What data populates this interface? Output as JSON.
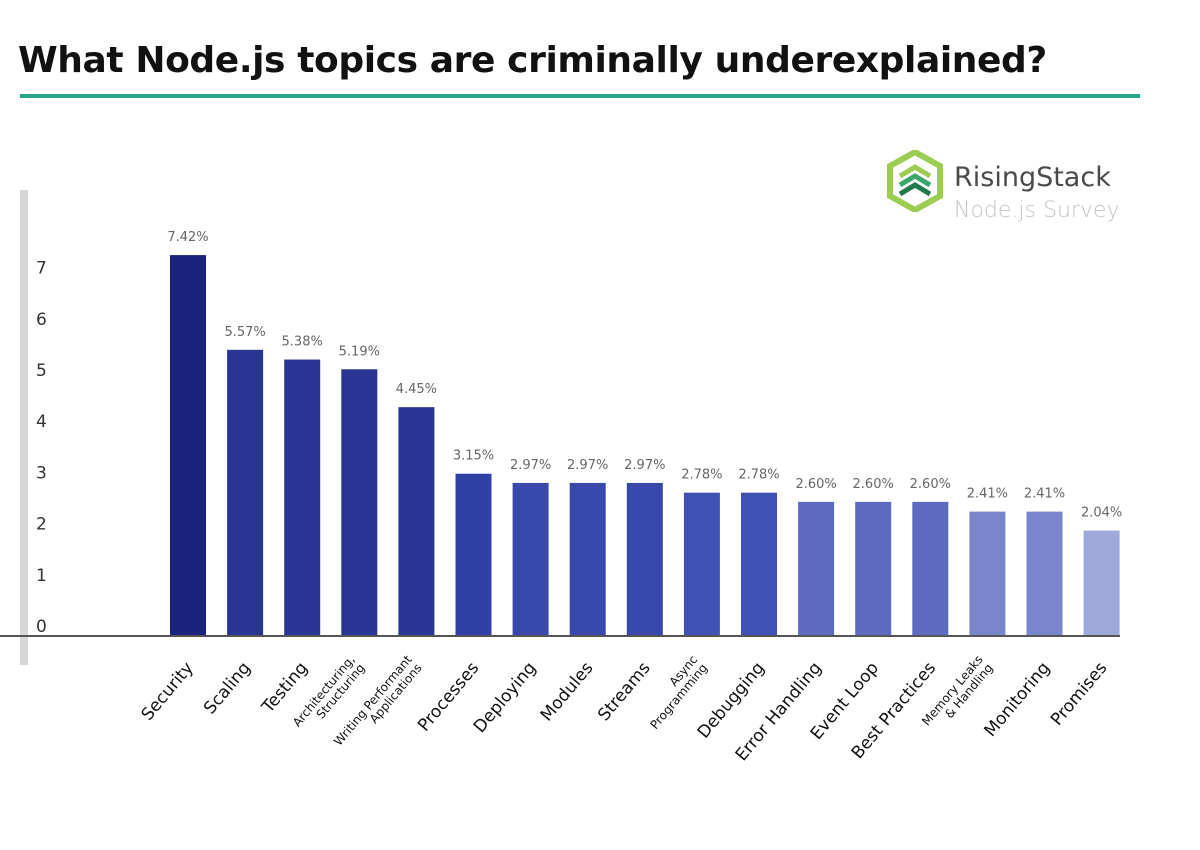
{
  "title": "What Node.js topics are criminally underexplained?",
  "logo": {
    "name": "RisingStack",
    "subtitle": "Node.js Survey",
    "colors": [
      "#9ccc52",
      "#3aa86b",
      "#1f7a4c"
    ]
  },
  "colors": {
    "accent_rule": "#2aa58e",
    "axis": "#555555",
    "left_rail": "#d6d6d6"
  },
  "chart_data": {
    "type": "bar",
    "title": "What Node.js topics are criminally underexplained?",
    "xlabel": "",
    "ylabel": "",
    "ylim": [
      0,
      7.7
    ],
    "yticks": [
      0,
      1,
      2,
      3,
      4,
      5,
      6,
      7
    ],
    "grid": false,
    "categories": [
      [
        "Security"
      ],
      [
        "Scaling"
      ],
      [
        "Testing"
      ],
      [
        "Architecturing,",
        "Structuring"
      ],
      [
        "Writing Performant",
        "Applications"
      ],
      [
        "Processes"
      ],
      [
        "Deploying"
      ],
      [
        "Modules"
      ],
      [
        "Streams"
      ],
      [
        "Async",
        "Programming"
      ],
      [
        "Debugging"
      ],
      [
        "Error Handling"
      ],
      [
        "Event Loop"
      ],
      [
        "Best Practices"
      ],
      [
        "Memory Leaks",
        "& Handling"
      ],
      [
        "Monitoring"
      ],
      [
        "Promises"
      ]
    ],
    "values": [
      7.42,
      5.57,
      5.38,
      5.19,
      4.45,
      3.15,
      2.97,
      2.97,
      2.97,
      2.78,
      2.78,
      2.6,
      2.6,
      2.6,
      2.41,
      2.41,
      2.04
    ],
    "labels": [
      "7.42%",
      "5.57%",
      "5.38%",
      "5.19%",
      "4.45%",
      "3.15%",
      "2.97%",
      "2.97%",
      "2.97%",
      "2.78%",
      "2.78%",
      "2.60%",
      "2.60%",
      "2.60%",
      "2.41%",
      "2.41%",
      "2.04%"
    ],
    "bar_colors": [
      "#1c237d",
      "#283593",
      "#283593",
      "#283593",
      "#283593",
      "#3040a4",
      "#3949ab",
      "#3949ab",
      "#3949ab",
      "#3f51b5",
      "#3f51b5",
      "#5c6bc0",
      "#5c6bc0",
      "#5c6bc0",
      "#7986cb",
      "#7986cb",
      "#9fa8da"
    ]
  }
}
